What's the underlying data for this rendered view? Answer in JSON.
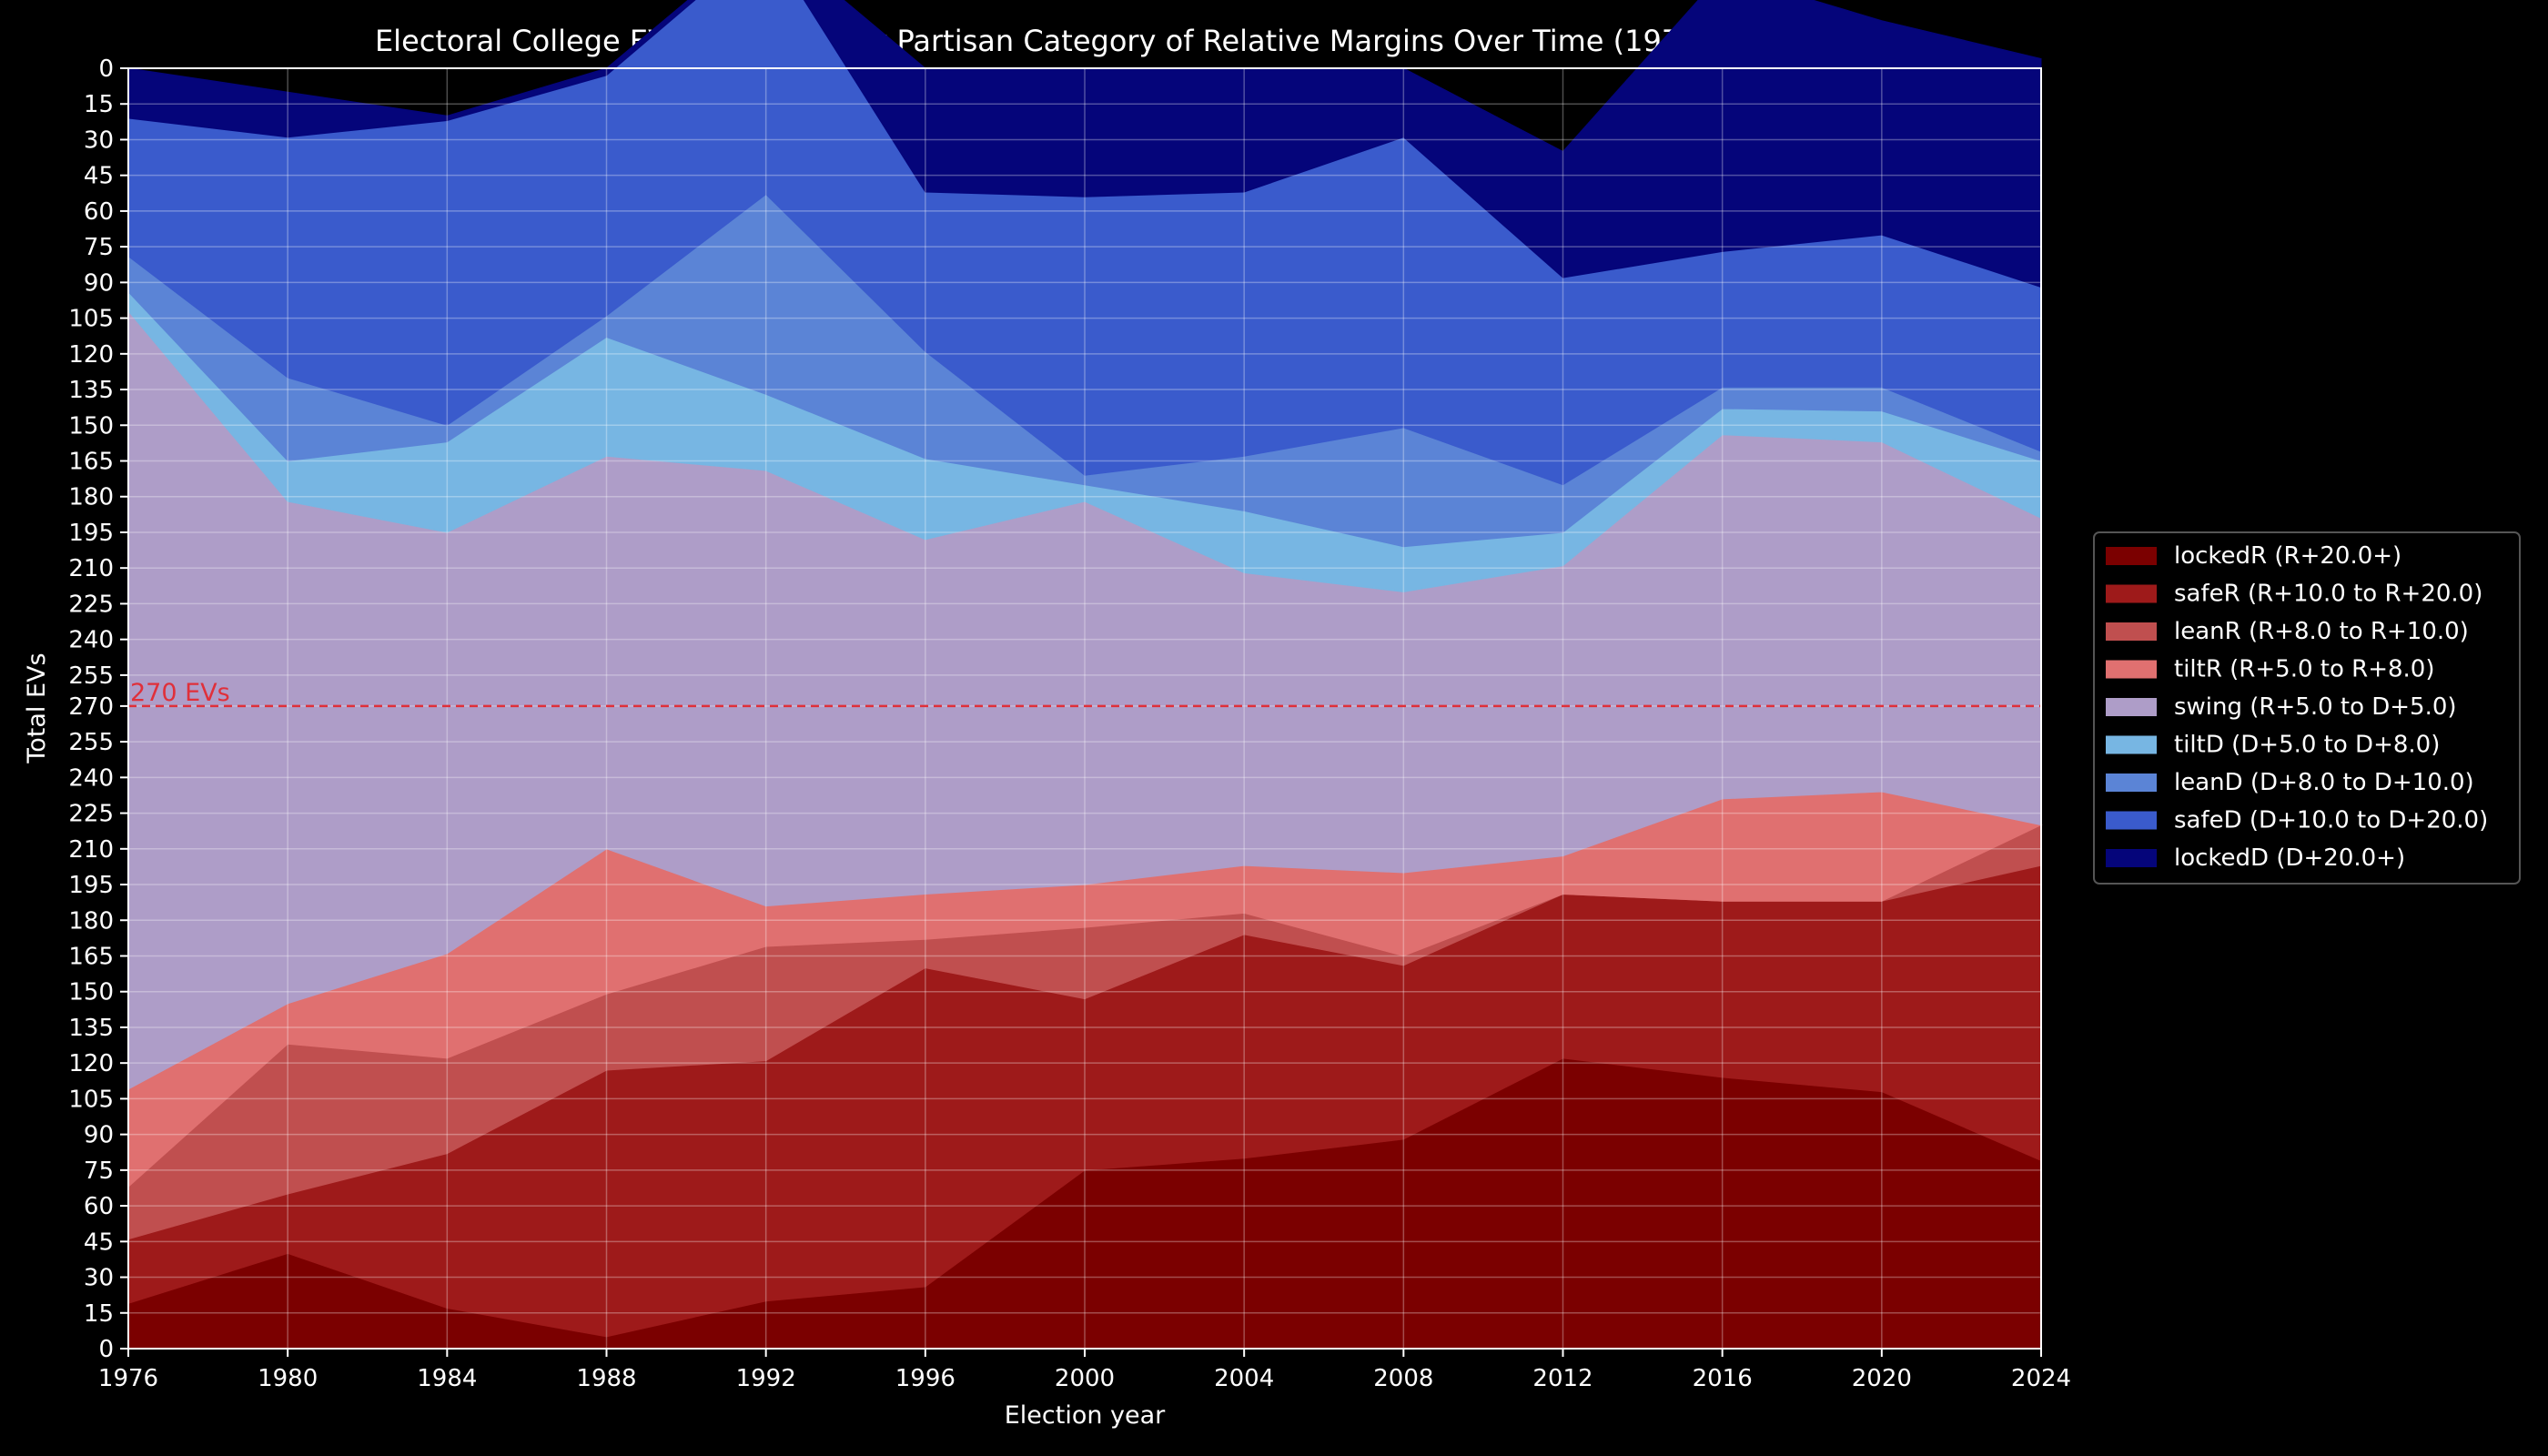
{
  "chart_data": {
    "type": "area",
    "title": "Electoral College EV Proportions by Partisan Category of Relative Margins Over Time (1976-2024)",
    "xlabel": "Election year",
    "ylabel": "Total EVs",
    "x": [
      1976,
      1980,
      1984,
      1988,
      1992,
      1996,
      2000,
      2004,
      2008,
      2012,
      2016,
      2020,
      2024
    ],
    "xlim": [
      1976,
      2024
    ],
    "ylim": [
      0,
      538
    ],
    "grid": true,
    "legend_position": "center-right",
    "y_ticks_bottom": [
      0,
      15,
      30,
      45,
      60,
      75,
      90,
      105,
      120,
      135,
      150,
      165,
      180,
      195,
      210,
      225,
      240,
      255,
      270
    ],
    "y_ticks_top": [
      0,
      15,
      30,
      45,
      60,
      75,
      90,
      105,
      120,
      135,
      150,
      165,
      180,
      195,
      210,
      225,
      240,
      255
    ],
    "series": [
      {
        "name": "lockedR (R+20.0+)",
        "color": "#7b0000",
        "values": [
          19,
          40,
          17,
          5,
          20,
          26,
          75,
          80,
          88,
          122,
          114,
          108,
          79
        ]
      },
      {
        "name": "safeR (R+10.0 to R+20.0)",
        "color": "#9e1a1a",
        "values": [
          27,
          25,
          65,
          112,
          101,
          134,
          72,
          94,
          73,
          69,
          74,
          80,
          124
        ]
      },
      {
        "name": "leanR (R+8.0 to R+10.0)",
        "color": "#c04f4f",
        "values": [
          22,
          63,
          40,
          32,
          48,
          12,
          30,
          9,
          4,
          0,
          0,
          0,
          17
        ]
      },
      {
        "name": "tiltR (R+5.0 to R+8.0)",
        "color": "#e07070",
        "values": [
          41,
          17,
          44,
          61,
          17,
          19,
          18,
          20,
          35,
          16,
          43,
          46,
          0
        ]
      },
      {
        "name": "swing (R+5.0 to D+5.0)",
        "color": "#ae9dc8",
        "values": [
          327,
          211,
          177,
          165,
          183,
          149,
          161,
          123,
          118,
          122,
          153,
          147,
          129
        ]
      },
      {
        "name": "tiltD (D+5.0 to D+8.0)",
        "color": "#77b6e3",
        "values": [
          8,
          17,
          38,
          50,
          32,
          34,
          7,
          26,
          19,
          14,
          11,
          13,
          24
        ]
      },
      {
        "name": "leanD (D+8.0 to D+10.0)",
        "color": "#5b84d6",
        "values": [
          15,
          35,
          7,
          9,
          84,
          45,
          4,
          23,
          50,
          20,
          9,
          10,
          4
        ]
      },
      {
        "name": "safeD (D+10.0 to D+20.0)",
        "color": "#3a5bcc",
        "values": [
          58,
          101,
          128,
          101,
          107,
          67,
          117,
          111,
          122,
          87,
          57,
          64,
          69
        ]
      },
      {
        "name": "lockedD (D+20.0+)",
        "color": "#05057a",
        "values": [
          21,
          19,
          2,
          3,
          2,
          52,
          54,
          52,
          29,
          53,
          117,
          90,
          96
        ]
      }
    ],
    "reference_line": {
      "value": 270,
      "label": "270 EVs",
      "color": "#e0303a"
    }
  }
}
